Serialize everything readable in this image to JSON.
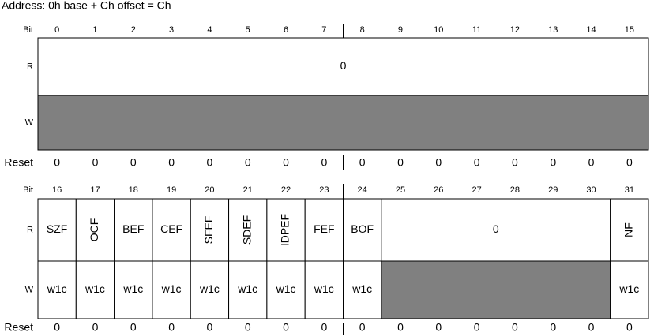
{
  "address": "Address: 0h base + Ch offset = Ch",
  "blocks": [
    {
      "bit_label": "Bit",
      "bits": [
        0,
        1,
        2,
        3,
        4,
        5,
        6,
        7,
        8,
        9,
        10,
        11,
        12,
        13,
        14,
        15
      ],
      "r_label": "R",
      "w_label": "W",
      "reset_label": "Reset",
      "r_fields": [
        "0"
      ],
      "w_fields": [],
      "resets": [
        0,
        0,
        0,
        0,
        0,
        0,
        0,
        0,
        0,
        0,
        0,
        0,
        0,
        0,
        0,
        0
      ]
    },
    {
      "bit_label": "Bit",
      "bits": [
        16,
        17,
        18,
        19,
        20,
        21,
        22,
        23,
        24,
        25,
        26,
        27,
        28,
        29,
        30,
        31
      ],
      "r_label": "R",
      "w_label": "W",
      "reset_label": "Reset",
      "r_fields": [
        "SZF",
        "OCF",
        "BEF",
        "CEF",
        "SFEF",
        "SDEF",
        "IDPEF",
        "FEF",
        "BOF",
        "0",
        "NF"
      ],
      "w_fields": [
        "w1c",
        "w1c",
        "w1c",
        "w1c",
        "w1c",
        "w1c",
        "w1c",
        "w1c",
        "w1c",
        "w1c"
      ],
      "resets": [
        0,
        0,
        0,
        0,
        0,
        0,
        0,
        0,
        0,
        0,
        0,
        0,
        0,
        0,
        0,
        0
      ]
    }
  ]
}
